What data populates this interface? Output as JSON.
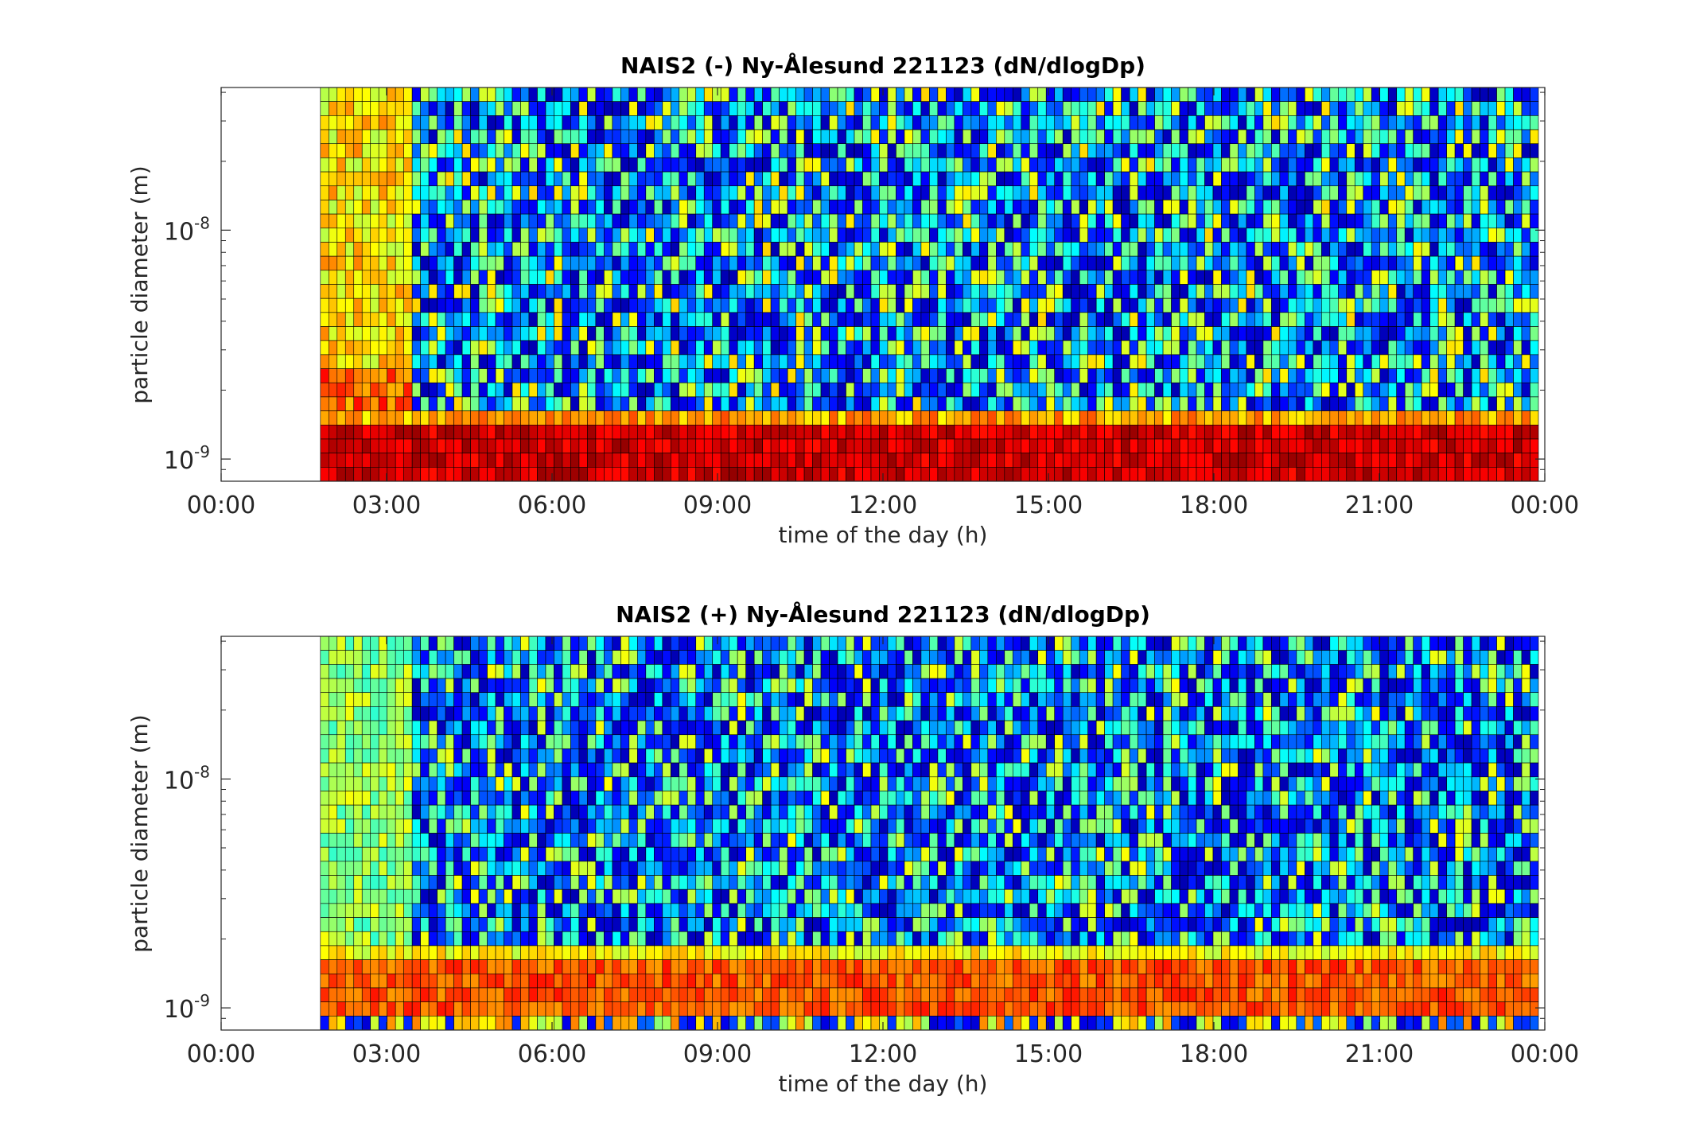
{
  "chart_data": [
    {
      "type": "heatmap",
      "title": "NAIS2 (-) Ny-Ålesund 221123 (dN/dlogDp)",
      "xlabel": "time of the day (h)",
      "ylabel": "particle diameter (m)",
      "x_tick_labels": [
        "00:00",
        "03:00",
        "06:00",
        "09:00",
        "12:00",
        "15:00",
        "18:00",
        "21:00",
        "00:00"
      ],
      "x_range_hours": [
        0,
        24
      ],
      "data_start_hours": 1.8,
      "y_scale": "log",
      "y_range_m": [
        8e-10,
        4.2e-08
      ],
      "y_ticks": [
        {
          "base": "10",
          "exp": "-9"
        },
        {
          "base": "10",
          "exp": "-8"
        }
      ],
      "colormap": "jet",
      "colors": {
        "low": "#00008f",
        "mid": "#00ffff",
        "high": "#ff0000",
        "gridline": "#000000"
      },
      "pattern": "red band of high concentration at the smallest diameters (~1e-9 m) all day; yellow/green high concentrations across all sizes before ~03:30; mostly blue/cyan low concentrations at larger sizes afterwards"
    },
    {
      "type": "heatmap",
      "title": "NAIS2 (+) Ny-Ålesund 221123 (dN/dlogDp)",
      "xlabel": "time of the day (h)",
      "ylabel": "particle diameter (m)",
      "x_tick_labels": [
        "00:00",
        "03:00",
        "06:00",
        "09:00",
        "12:00",
        "15:00",
        "18:00",
        "21:00",
        "00:00"
      ],
      "x_range_hours": [
        0,
        24
      ],
      "data_start_hours": 1.8,
      "y_scale": "log",
      "y_range_m": [
        8e-10,
        4.2e-08
      ],
      "y_ticks": [
        {
          "base": "10",
          "exp": "-9"
        },
        {
          "base": "10",
          "exp": "-8"
        }
      ],
      "colormap": "jet",
      "colors": {
        "low": "#00008f",
        "mid": "#00ffff",
        "high": "#ff0000",
        "gridline": "#000000"
      },
      "pattern": "orange/yellow band of high concentration near 1e-9 m all day; dark blue speckle at the lowest bin; cyan/green before ~03:30; mostly blue low concentrations at larger sizes afterwards"
    }
  ]
}
